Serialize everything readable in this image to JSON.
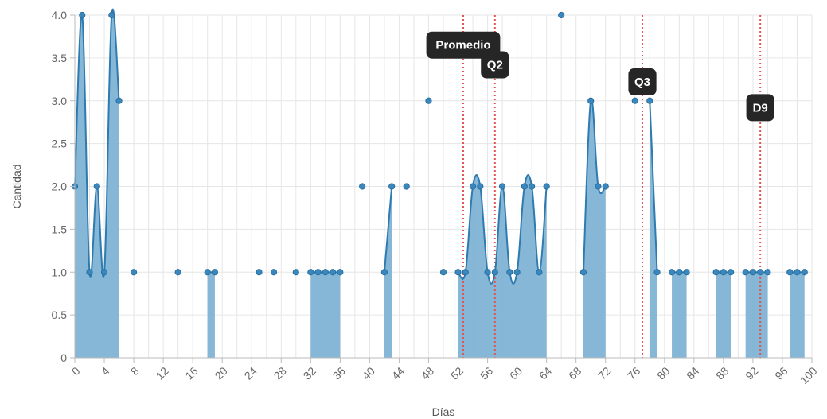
{
  "chart_data": {
    "type": "line",
    "xlabel": "Días",
    "ylabel": "Cantidad",
    "xlim": [
      0,
      100
    ],
    "ylim": [
      0,
      4
    ],
    "x_ticks": [
      0,
      4,
      8,
      12,
      16,
      20,
      24,
      28,
      32,
      36,
      40,
      44,
      48,
      52,
      56,
      60,
      64,
      68,
      72,
      76,
      80,
      84,
      88,
      92,
      96,
      100
    ],
    "y_ticks": [
      0,
      0.5,
      1.0,
      1.5,
      2.0,
      2.5,
      3.0,
      3.5,
      4.0
    ],
    "y_tick_labels": [
      "0",
      "0.5",
      "1.0",
      "1.5",
      "2.0",
      "2.5",
      "3.0",
      "3.5",
      "4.0"
    ],
    "grid": true,
    "colors": {
      "series": "#2e7bb0",
      "fill": "#7fb3d5",
      "marker": "#3a87bd",
      "ref_line": "#e05555",
      "annot_bg": "#262626"
    },
    "points": [
      [
        0,
        2
      ],
      [
        1,
        4
      ],
      [
        2,
        1
      ],
      [
        3,
        2
      ],
      [
        4,
        1
      ],
      [
        5,
        4
      ],
      [
        6,
        3
      ],
      [
        8,
        1
      ],
      [
        14,
        1
      ],
      [
        18,
        1
      ],
      [
        19,
        1
      ],
      [
        25,
        1
      ],
      [
        27,
        1
      ],
      [
        30,
        1
      ],
      [
        32,
        1
      ],
      [
        33,
        1
      ],
      [
        34,
        1
      ],
      [
        35,
        1
      ],
      [
        36,
        1
      ],
      [
        39,
        2
      ],
      [
        42,
        1
      ],
      [
        43,
        2
      ],
      [
        45,
        2
      ],
      [
        48,
        3
      ],
      [
        50,
        1
      ],
      [
        52,
        1
      ],
      [
        53,
        1
      ],
      [
        54,
        2
      ],
      [
        55,
        2
      ],
      [
        56,
        1
      ],
      [
        57,
        1
      ],
      [
        58,
        2
      ],
      [
        59,
        1
      ],
      [
        60,
        1
      ],
      [
        61,
        2
      ],
      [
        62,
        2
      ],
      [
        63,
        1
      ],
      [
        64,
        2
      ],
      [
        66,
        4
      ],
      [
        69,
        1
      ],
      [
        70,
        3
      ],
      [
        71,
        2
      ],
      [
        72,
        2
      ],
      [
        76,
        3
      ],
      [
        78,
        3
      ],
      [
        79,
        1
      ],
      [
        81,
        1
      ],
      [
        82,
        1
      ],
      [
        83,
        1
      ],
      [
        87,
        1
      ],
      [
        88,
        1
      ],
      [
        89,
        1
      ],
      [
        91,
        1
      ],
      [
        92,
        1
      ],
      [
        93,
        1
      ],
      [
        94,
        1
      ],
      [
        97,
        1
      ],
      [
        98,
        1
      ],
      [
        99,
        1
      ]
    ],
    "line_segments": [
      [
        0,
        1,
        2,
        3,
        4,
        5,
        6
      ],
      [
        18,
        19
      ],
      [
        32,
        33,
        34,
        35,
        36
      ],
      [
        42,
        43
      ],
      [
        52,
        53,
        54,
        55,
        56,
        57,
        58,
        59,
        60,
        61,
        62,
        63,
        64
      ],
      [
        69,
        70,
        71,
        72
      ],
      [
        78,
        79
      ],
      [
        81,
        82,
        83
      ],
      [
        87,
        88,
        89
      ],
      [
        91,
        92,
        93,
        94
      ],
      [
        97,
        98,
        99
      ]
    ],
    "annotations": [
      {
        "label": "Promedio",
        "x": 52.7,
        "text_y": 3.65
      },
      {
        "label": "Q2",
        "x": 57.0,
        "text_y": 3.42
      },
      {
        "label": "Q3",
        "x": 77.0,
        "text_y": 3.22
      },
      {
        "label": "D9",
        "x": 93.0,
        "text_y": 2.92
      }
    ]
  }
}
